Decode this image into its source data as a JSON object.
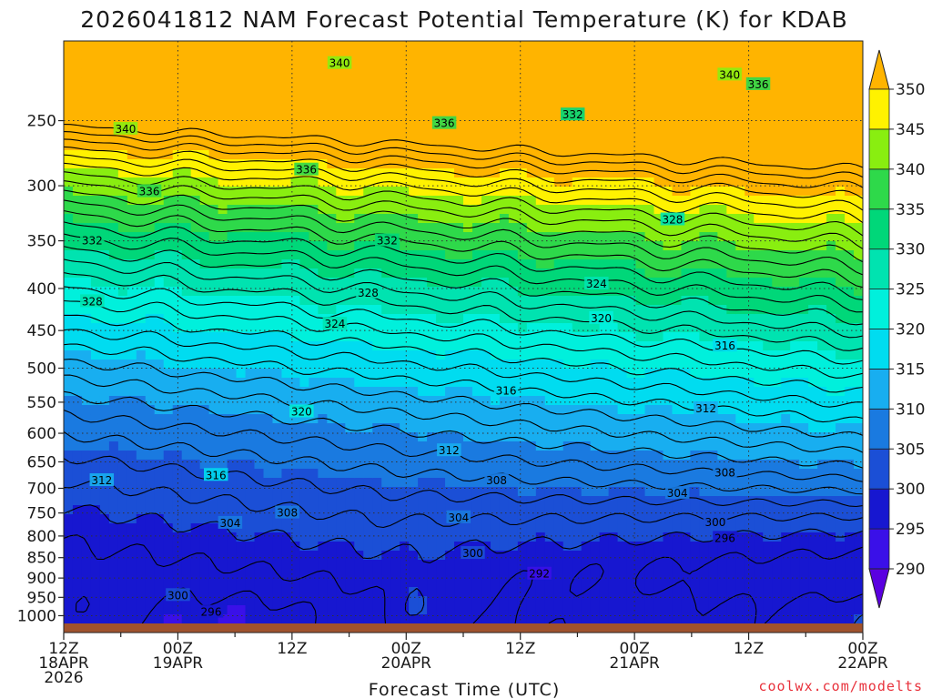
{
  "chart_data": {
    "type": "heatmap",
    "title": "2026041812 NAM Forecast Potential Temperature (K) for KDAB",
    "xlabel": "Forecast Time (UTC)",
    "ylabel": "",
    "credit": "coolwx.com/modelts",
    "x_range_hours": [
      0,
      84
    ],
    "x_ticks": [
      {
        "h": 0,
        "line1": "12Z",
        "line2": "18APR",
        "line3": "2026"
      },
      {
        "h": 12,
        "line1": "00Z",
        "line2": "19APR",
        "line3": ""
      },
      {
        "h": 24,
        "line1": "12Z",
        "line2": "",
        "line3": ""
      },
      {
        "h": 36,
        "line1": "00Z",
        "line2": "20APR",
        "line3": ""
      },
      {
        "h": 48,
        "line1": "12Z",
        "line2": "",
        "line3": ""
      },
      {
        "h": 60,
        "line1": "00Z",
        "line2": "21APR",
        "line3": ""
      },
      {
        "h": 72,
        "line1": "12Z",
        "line2": "",
        "line3": ""
      },
      {
        "h": 84,
        "line1": "00Z",
        "line2": "22APR",
        "line3": ""
      }
    ],
    "y_scale": "log-pressure",
    "y_range_hpa": [
      1022,
      200
    ],
    "y_ticks": [
      250,
      300,
      350,
      400,
      450,
      500,
      550,
      600,
      650,
      700,
      750,
      800,
      850,
      900,
      950,
      1000
    ],
    "colorbar": {
      "levels": [
        290,
        295,
        300,
        305,
        310,
        315,
        320,
        325,
        330,
        335,
        340,
        345,
        350
      ],
      "colors": [
        "#5a00e0",
        "#3a10e8",
        "#1717d0",
        "#1b4fd6",
        "#1a7ae0",
        "#18aef0",
        "#00dcf0",
        "#00f0dc",
        "#00e3b0",
        "#00d779",
        "#2ed94a",
        "#89ee10",
        "#fff200",
        "#ffb400"
      ]
    },
    "ground_color": "#a0522d",
    "contour_interval_K": 4,
    "contour_labels": [
      {
        "h": 29.0,
        "p": 213,
        "v": 340
      },
      {
        "h": 70.0,
        "p": 220,
        "v": 340
      },
      {
        "h": 73.0,
        "p": 226,
        "v": 336
      },
      {
        "h": 6.5,
        "p": 256,
        "v": 340
      },
      {
        "h": 40.0,
        "p": 252,
        "v": 336
      },
      {
        "h": 53.5,
        "p": 246,
        "v": 332
      },
      {
        "h": 25.5,
        "p": 287,
        "v": 336
      },
      {
        "h": 9.0,
        "p": 305,
        "v": 336
      },
      {
        "h": 64.0,
        "p": 330,
        "v": 328
      },
      {
        "h": 3.0,
        "p": 350,
        "v": 332
      },
      {
        "h": 34.0,
        "p": 350,
        "v": 332
      },
      {
        "h": 56.0,
        "p": 395,
        "v": 324
      },
      {
        "h": 3.0,
        "p": 415,
        "v": 328
      },
      {
        "h": 32.0,
        "p": 405,
        "v": 328
      },
      {
        "h": 28.5,
        "p": 442,
        "v": 324
      },
      {
        "h": 56.5,
        "p": 435,
        "v": 320
      },
      {
        "h": 69.5,
        "p": 470,
        "v": 316
      },
      {
        "h": 25.0,
        "p": 565,
        "v": 320
      },
      {
        "h": 46.5,
        "p": 533,
        "v": 316
      },
      {
        "h": 67.5,
        "p": 560,
        "v": 312
      },
      {
        "h": 40.5,
        "p": 630,
        "v": 312
      },
      {
        "h": 4.0,
        "p": 685,
        "v": 312
      },
      {
        "h": 16.0,
        "p": 675,
        "v": 316
      },
      {
        "h": 45.5,
        "p": 685,
        "v": 308
      },
      {
        "h": 69.5,
        "p": 670,
        "v": 308
      },
      {
        "h": 64.5,
        "p": 710,
        "v": 304
      },
      {
        "h": 23.5,
        "p": 750,
        "v": 308
      },
      {
        "h": 17.5,
        "p": 772,
        "v": 304
      },
      {
        "h": 41.5,
        "p": 760,
        "v": 304
      },
      {
        "h": 68.5,
        "p": 770,
        "v": 300
      },
      {
        "h": 69.5,
        "p": 805,
        "v": 296
      },
      {
        "h": 43.0,
        "p": 840,
        "v": 300
      },
      {
        "h": 50.0,
        "p": 890,
        "v": 292
      },
      {
        "h": 12.0,
        "p": 945,
        "v": 300
      },
      {
        "h": 15.5,
        "p": 990,
        "v": 296
      }
    ]
  }
}
